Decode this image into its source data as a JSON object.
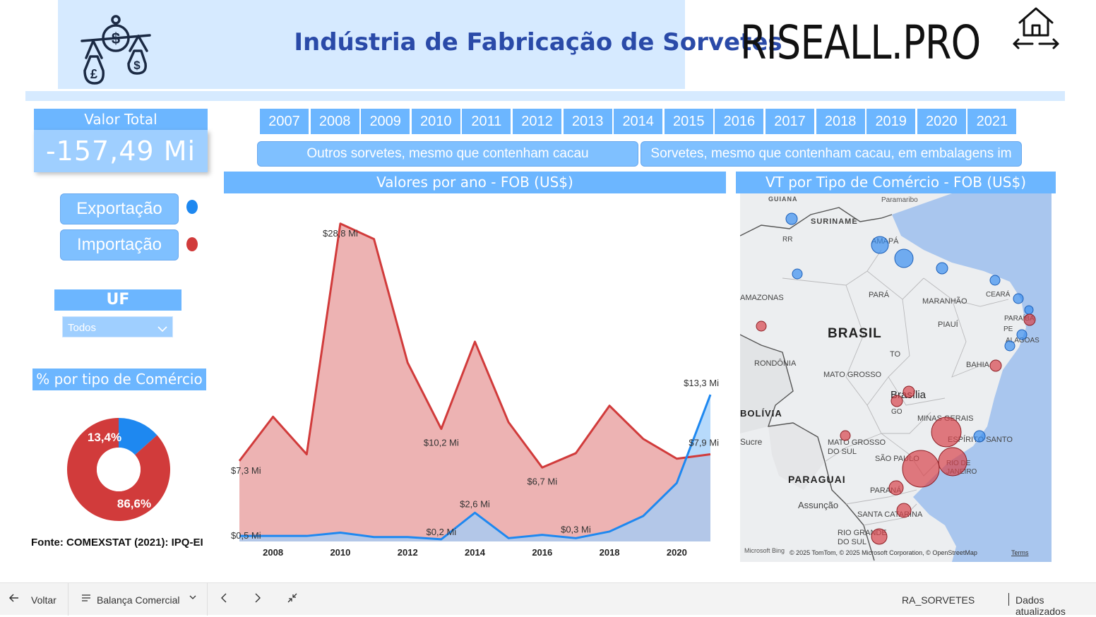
{
  "header": {
    "title": "Indústria de Fabricação de Sorvetes",
    "logo": "RISEALL.PRO",
    "logo_icon": "balance-scale-icon",
    "home_icon": "home-arrows-icon"
  },
  "kpi": {
    "label": "Valor Total",
    "value": "-157,49 Mi"
  },
  "legend": {
    "export_label": "Exportação",
    "import_label": "Importação",
    "export_color": "#1e88f0",
    "import_color": "#d13b3b"
  },
  "uf": {
    "label": "UF",
    "selected": "Todos"
  },
  "donut": {
    "title": "% por tipo de Comércio",
    "export_pct": 13.4,
    "export_label": "13,4%",
    "import_pct": 86.6,
    "import_label": "86,6%"
  },
  "source": "Fonte: COMEXSTAT (2021): IPQ-EI",
  "years": [
    "2007",
    "2008",
    "2009",
    "2010",
    "2011",
    "2012",
    "2013",
    "2014",
    "2015",
    "2016",
    "2017",
    "2018",
    "2019",
    "2020",
    "2021"
  ],
  "products": [
    "Outros sorvetes, mesmo que contenham cacau",
    "Sorvetes, mesmo que contenham cacau, em embalagens im"
  ],
  "line_chart": {
    "title": "Valores por ano - FOB (US$)"
  },
  "chart_data": {
    "type": "area",
    "x": [
      2007,
      2008,
      2009,
      2010,
      2011,
      2012,
      2013,
      2014,
      2015,
      2016,
      2017,
      2018,
      2019,
      2020,
      2021
    ],
    "xticks": [
      "2008",
      "2010",
      "2012",
      "2014",
      "2016",
      "2018",
      "2020"
    ],
    "ylim": [
      0,
      30
    ],
    "series": [
      {
        "name": "Importação",
        "color": "#d13b3b",
        "values": [
          7.3,
          11.3,
          7.9,
          28.8,
          27.4,
          16.2,
          10.2,
          18.1,
          10.8,
          6.7,
          8.0,
          12.3,
          9.3,
          7.5,
          7.9
        ]
      },
      {
        "name": "Exportação",
        "color": "#1e88f0",
        "values": [
          0.5,
          0.5,
          0.5,
          0.8,
          0.4,
          0.4,
          0.2,
          2.6,
          0.3,
          0.6,
          0.3,
          0.9,
          2.3,
          5.3,
          13.3
        ]
      }
    ],
    "data_labels": [
      {
        "series": 0,
        "x": 2007,
        "text": "$7,3 Mi"
      },
      {
        "series": 0,
        "x": 2010,
        "text": "$28,8 Mi"
      },
      {
        "series": 0,
        "x": 2013,
        "text": "$10,2 Mi"
      },
      {
        "series": 0,
        "x": 2016,
        "text": "$6,7 Mi"
      },
      {
        "series": 0,
        "x": 2021,
        "text": "$7,9 Mi"
      },
      {
        "series": 1,
        "x": 2007,
        "text": "$0,5 Mi"
      },
      {
        "series": 1,
        "x": 2013,
        "text": "$0,2 Mi"
      },
      {
        "series": 1,
        "x": 2014,
        "text": "$2,6 Mi"
      },
      {
        "series": 1,
        "x": 2017,
        "text": "$0,3 Mi"
      },
      {
        "series": 1,
        "x": 2021,
        "text": "$13,3 Mi"
      }
    ]
  },
  "map": {
    "title": "VT por Tipo de Comércio - FOB (US$)",
    "labels": [
      "GUIANA",
      "Paramaribo",
      "SURINAME",
      "RR",
      "AMAPÁ",
      "AMAZONAS",
      "PARÁ",
      "MARANHÃO",
      "CEARÁ",
      "PARAÍBA",
      "PE",
      "ALAGOAS",
      "PIAUÍ",
      "BRASIL",
      "TO",
      "BAHIA",
      "RONDÔNIA",
      "MATO GROSSO",
      "Brasília",
      "GO",
      "MINAS GERAIS",
      "BOLÍVIA",
      "Sucre",
      "MATO GROSSO DO SUL",
      "ESPÍRITO SANTO",
      "SÃO PAULO",
      "RIO DE JANEIRO",
      "PARAGUAI",
      "PARANÁ",
      "Assunção",
      "SANTA CATARINA",
      "RIO GRANDE DO SUL"
    ],
    "attribution": "© 2025 TomTom, © 2025 Microsoft Corporation, © OpenStreetMap",
    "terms": "Terms",
    "brand": "Microsoft Bing"
  },
  "footer": {
    "back": "Voltar",
    "page": "Balança Comercial",
    "report": "RA_SORVETES",
    "updated": "Dados atualizados"
  }
}
